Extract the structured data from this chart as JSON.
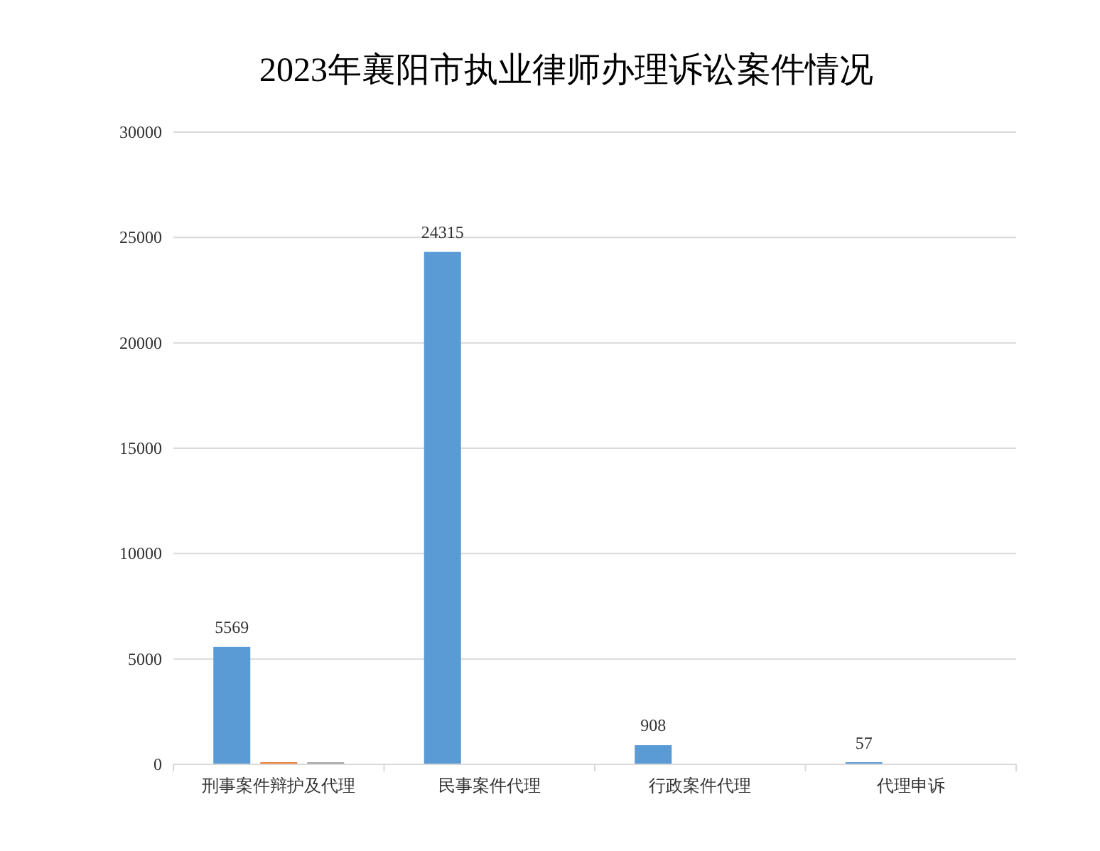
{
  "chart_data": {
    "type": "bar",
    "title": "2023年襄阳市执业律师办理诉讼案件情况",
    "categories": [
      "刑事案件辩护及代理",
      "民事案件代理",
      "行政案件代理",
      "代理申诉"
    ],
    "series": [
      {
        "color": "#5b9bd5",
        "values": [
          5569,
          24315,
          908,
          57
        ],
        "value_labels": [
          "5569",
          "24315",
          "908",
          "57"
        ]
      },
      {
        "color": "#ed7d31",
        "values": [
          0,
          null,
          null,
          null
        ]
      },
      {
        "color": "#a5a5a5",
        "values": [
          0,
          null,
          null,
          null
        ]
      }
    ],
    "ylim": [
      0,
      30000
    ],
    "yticks": [
      0,
      5000,
      10000,
      15000,
      20000,
      25000,
      30000
    ],
    "grid": "y"
  }
}
